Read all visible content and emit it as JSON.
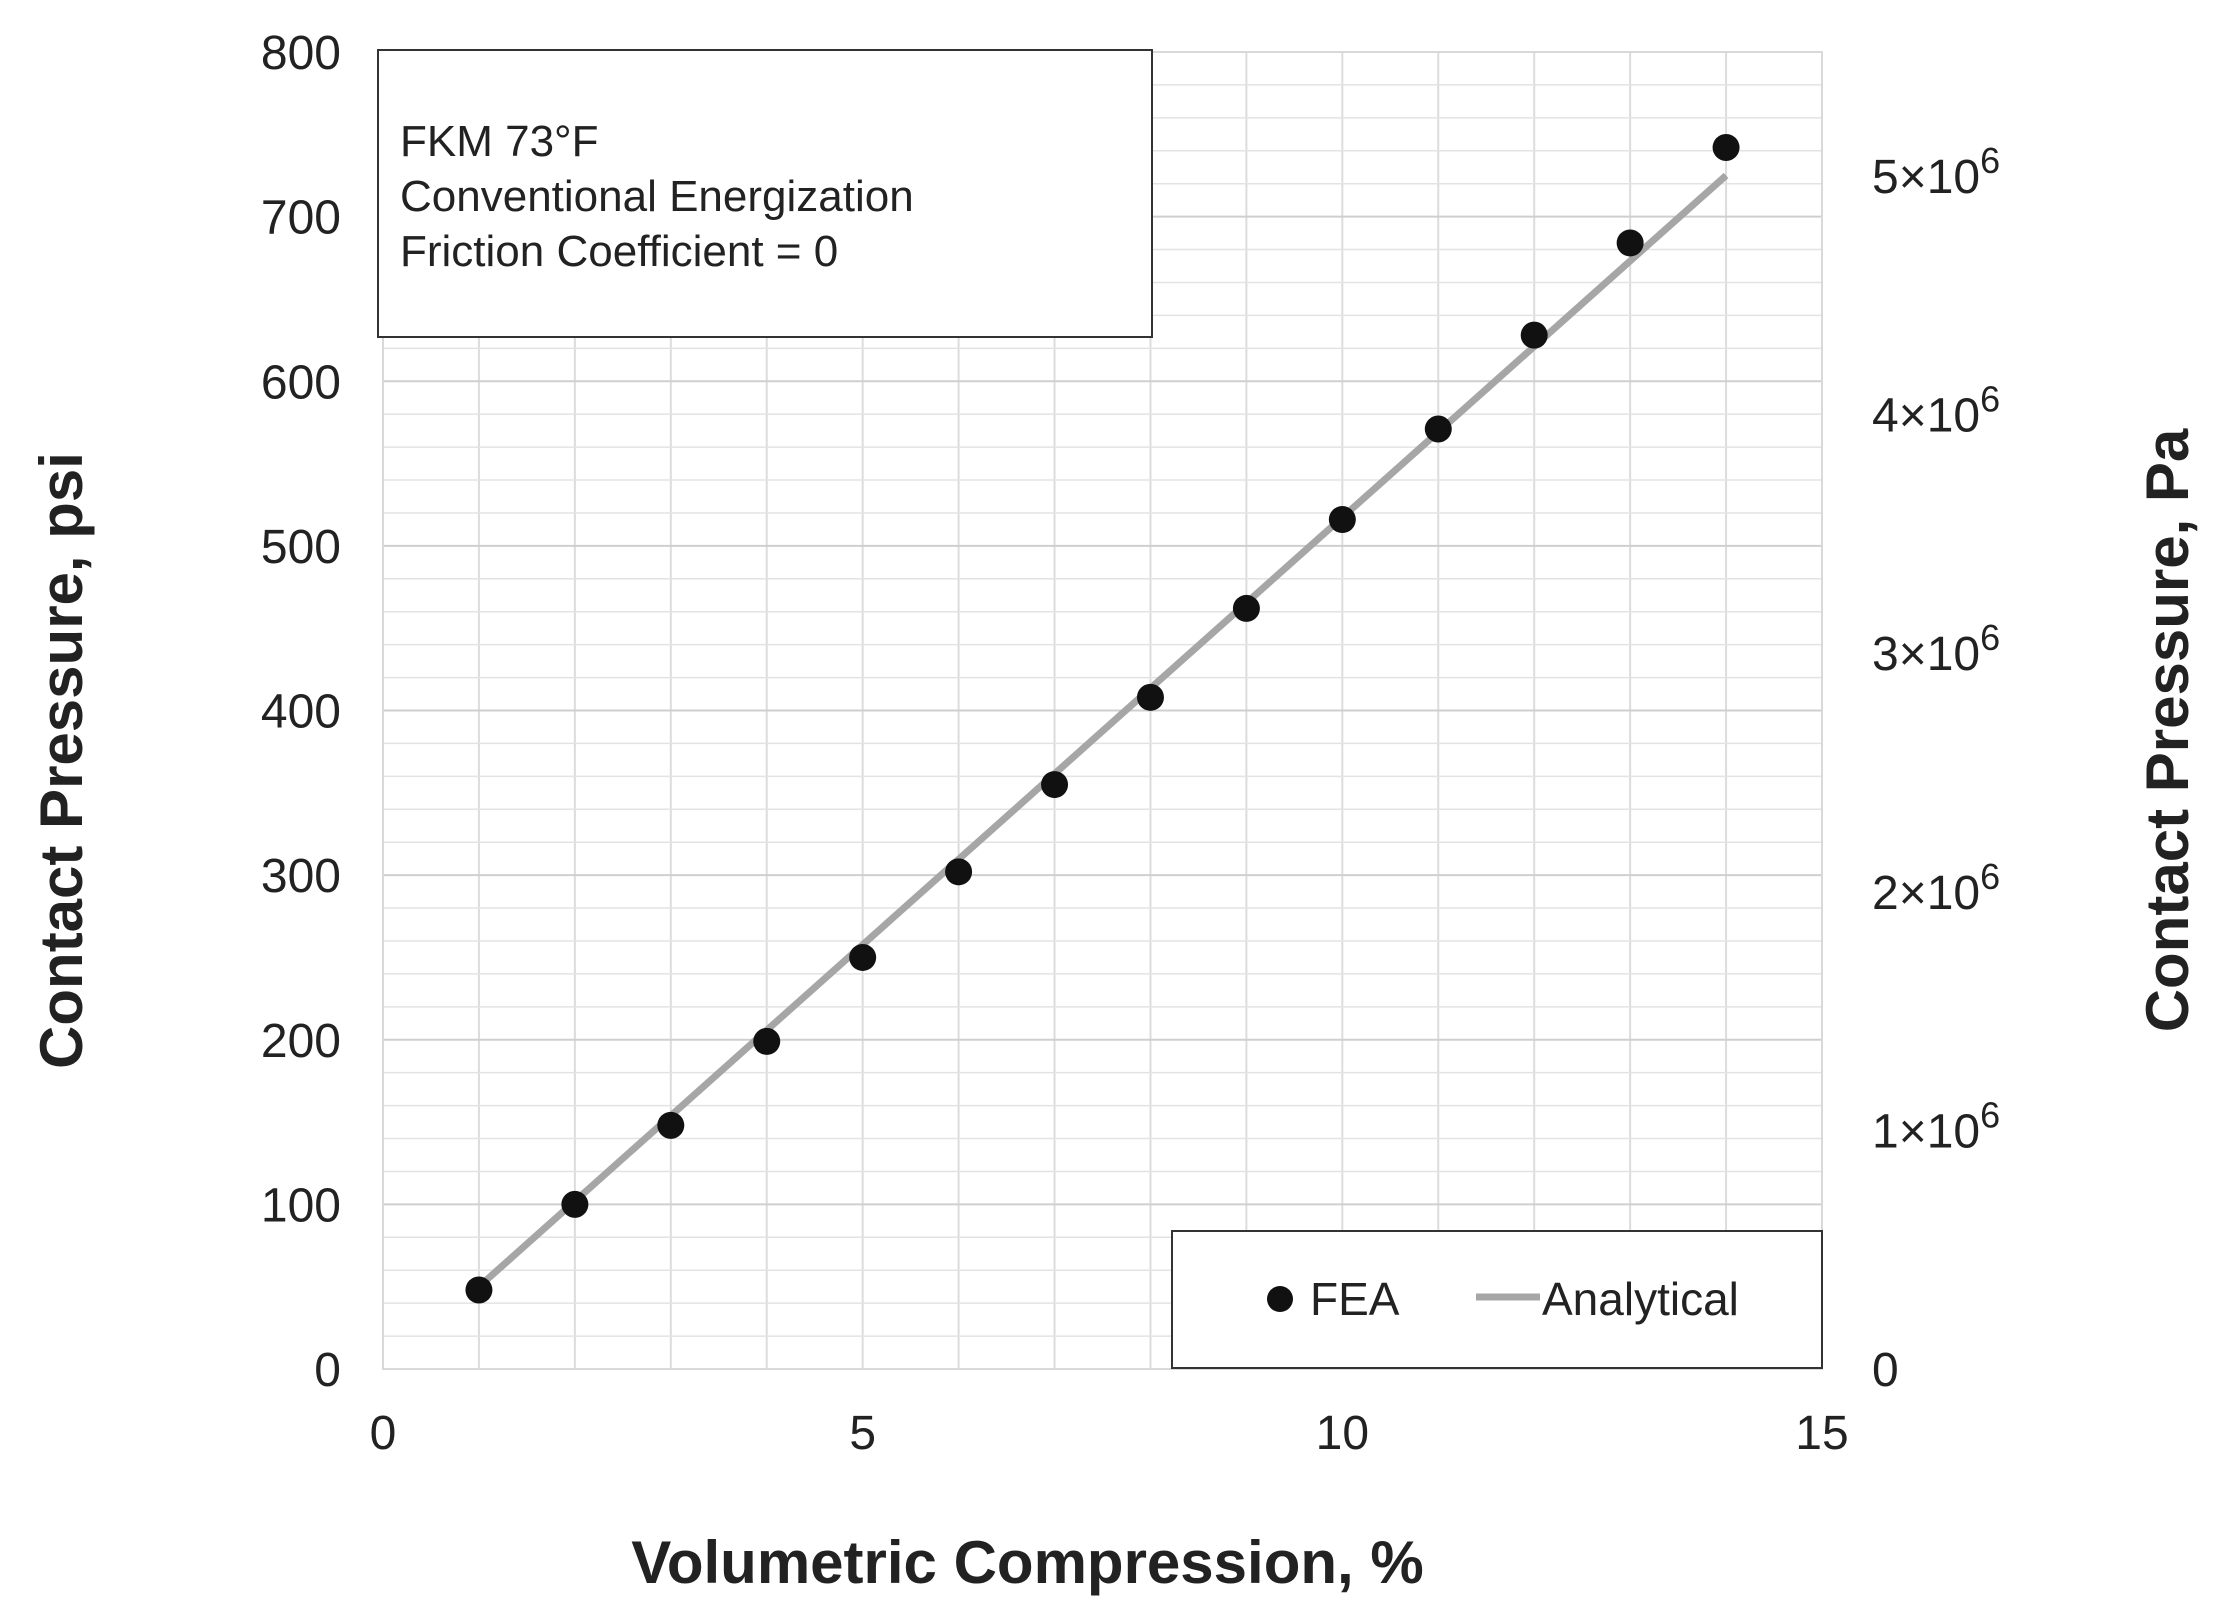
{
  "chart_data": {
    "type": "scatter",
    "title": "",
    "xlabel": "Volumetric Compression, %",
    "ylabel": "Contact Pressure, psi",
    "y2label": "Contact Pressure, Pa",
    "xlim": [
      0,
      15
    ],
    "ylim": [
      0,
      800
    ],
    "y2lim": [
      0,
      5520000
    ],
    "grid": true,
    "x_ticks": [
      "0",
      "5",
      "10",
      "15"
    ],
    "y_ticks": [
      "0",
      "100",
      "200",
      "300",
      "400",
      "500",
      "600",
      "700",
      "800"
    ],
    "y2_ticks": [
      {
        "value": 0,
        "label": "0",
        "exp": ""
      },
      {
        "value": 1000000,
        "label": "1×10",
        "exp": "6"
      },
      {
        "value": 2000000,
        "label": "2×10",
        "exp": "6"
      },
      {
        "value": 3000000,
        "label": "3×10",
        "exp": "6"
      },
      {
        "value": 4000000,
        "label": "4×10",
        "exp": "6"
      },
      {
        "value": 5000000,
        "label": "5×10",
        "exp": "6"
      }
    ],
    "annotation": [
      "FKM 73°F",
      "Conventional Energization",
      "Friction Coefficient = 0"
    ],
    "legend_position": "bottom-right",
    "series": [
      {
        "name": "FEA",
        "kind": "scatter",
        "color": "#111111",
        "x": [
          1,
          2,
          3,
          4,
          5,
          6,
          7,
          8,
          9,
          10,
          11,
          12,
          13,
          14
        ],
        "y": [
          48,
          100,
          148,
          199,
          250,
          302,
          355,
          408,
          462,
          516,
          571,
          628,
          684,
          742
        ]
      },
      {
        "name": "Analytical",
        "kind": "line",
        "color": "#a6a6a6",
        "x": [
          1,
          14
        ],
        "y": [
          50,
          725
        ]
      }
    ]
  }
}
